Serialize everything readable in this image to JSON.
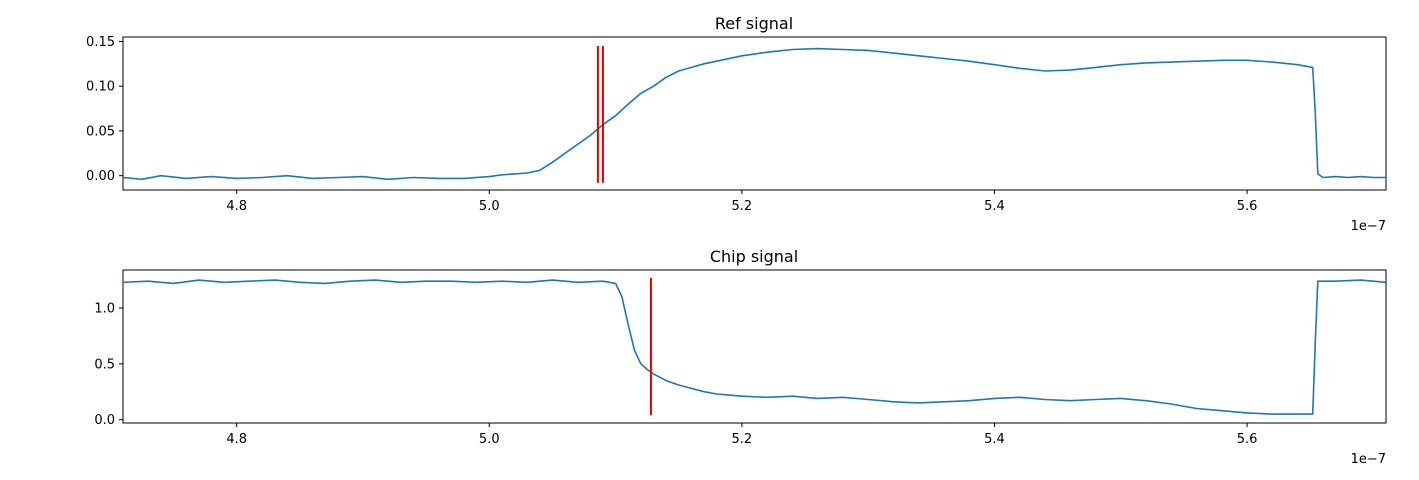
{
  "chart_data": [
    {
      "type": "line",
      "title": "Ref signal",
      "xlabel": "",
      "ylabel": "",
      "x_offset_text": "1e−7",
      "xlim": [
        4.71,
        5.71
      ],
      "ylim": [
        -0.016,
        0.155
      ],
      "xticks": [
        "4.8",
        "5.0",
        "5.2",
        "5.4",
        "5.6"
      ],
      "xtick_values": [
        4.8,
        5.0,
        5.2,
        5.4,
        5.6
      ],
      "yticks": [
        "0.00",
        "0.05",
        "0.10",
        "0.15"
      ],
      "ytick_values": [
        0.0,
        0.05,
        0.1,
        0.15
      ],
      "grid": false,
      "series_color": "#1f77b4",
      "marker_color": "#e00000",
      "vertical_markers": [
        {
          "x": 5.086,
          "y_range": [
            -0.008,
            0.145
          ]
        },
        {
          "x": 5.09,
          "y_range": [
            -0.008,
            0.145
          ]
        }
      ],
      "series": [
        {
          "x": [
            4.71,
            4.725,
            4.74,
            4.76,
            4.78,
            4.8,
            4.82,
            4.84,
            4.86,
            4.88,
            4.9,
            4.92,
            4.94,
            4.96,
            4.98,
            5.0,
            5.01,
            5.02,
            5.03,
            5.04,
            5.05,
            5.06,
            5.07,
            5.08,
            5.09,
            5.1,
            5.11,
            5.12,
            5.13,
            5.14,
            5.15,
            5.16,
            5.17,
            5.18,
            5.2,
            5.22,
            5.24,
            5.26,
            5.28,
            5.3,
            5.32,
            5.34,
            5.36,
            5.38,
            5.4,
            5.42,
            5.44,
            5.46,
            5.48,
            5.5,
            5.52,
            5.54,
            5.56,
            5.58,
            5.6,
            5.62,
            5.64,
            5.652,
            5.654,
            5.656,
            5.66,
            5.67,
            5.68,
            5.69,
            5.7,
            5.71
          ],
          "y": [
            -0.002,
            -0.004,
            0.0,
            -0.003,
            -0.001,
            -0.003,
            -0.002,
            0.0,
            -0.003,
            -0.002,
            -0.001,
            -0.004,
            -0.002,
            -0.003,
            -0.003,
            -0.001,
            0.001,
            0.002,
            0.003,
            0.006,
            0.015,
            0.025,
            0.035,
            0.045,
            0.057,
            0.067,
            0.08,
            0.092,
            0.1,
            0.11,
            0.117,
            0.121,
            0.125,
            0.128,
            0.134,
            0.138,
            0.141,
            0.142,
            0.141,
            0.14,
            0.137,
            0.134,
            0.131,
            0.128,
            0.124,
            0.12,
            0.117,
            0.118,
            0.121,
            0.124,
            0.126,
            0.127,
            0.128,
            0.129,
            0.129,
            0.127,
            0.124,
            0.121,
            0.07,
            0.002,
            -0.002,
            -0.001,
            -0.002,
            -0.001,
            -0.002,
            -0.002
          ]
        }
      ]
    },
    {
      "type": "line",
      "title": "Chip signal",
      "xlabel": "",
      "ylabel": "",
      "x_offset_text": "1e−7",
      "xlim": [
        4.71,
        5.71
      ],
      "ylim": [
        -0.03,
        1.34
      ],
      "xticks": [
        "4.8",
        "5.0",
        "5.2",
        "5.4",
        "5.6"
      ],
      "xtick_values": [
        4.8,
        5.0,
        5.2,
        5.4,
        5.6
      ],
      "yticks": [
        "0.0",
        "0.5",
        "1.0"
      ],
      "ytick_values": [
        0.0,
        0.5,
        1.0
      ],
      "grid": false,
      "series_color": "#1f77b4",
      "marker_color": "#e00000",
      "vertical_markers": [
        {
          "x": 5.128,
          "y_range": [
            0.04,
            1.27
          ]
        }
      ],
      "series": [
        {
          "x": [
            4.71,
            4.73,
            4.75,
            4.77,
            4.79,
            4.81,
            4.83,
            4.85,
            4.87,
            4.89,
            4.91,
            4.93,
            4.95,
            4.97,
            4.99,
            5.01,
            5.03,
            5.05,
            5.07,
            5.09,
            5.1,
            5.105,
            5.11,
            5.115,
            5.12,
            5.125,
            5.13,
            5.14,
            5.15,
            5.16,
            5.17,
            5.18,
            5.19,
            5.2,
            5.22,
            5.24,
            5.26,
            5.28,
            5.3,
            5.32,
            5.34,
            5.36,
            5.38,
            5.4,
            5.42,
            5.44,
            5.46,
            5.48,
            5.5,
            5.52,
            5.54,
            5.56,
            5.58,
            5.6,
            5.62,
            5.64,
            5.652,
            5.654,
            5.656,
            5.67,
            5.69,
            5.71
          ],
          "y": [
            1.23,
            1.24,
            1.22,
            1.25,
            1.23,
            1.24,
            1.25,
            1.23,
            1.22,
            1.24,
            1.25,
            1.23,
            1.24,
            1.24,
            1.23,
            1.24,
            1.23,
            1.25,
            1.23,
            1.24,
            1.22,
            1.1,
            0.85,
            0.62,
            0.5,
            0.45,
            0.41,
            0.35,
            0.31,
            0.28,
            0.25,
            0.23,
            0.22,
            0.21,
            0.2,
            0.21,
            0.19,
            0.2,
            0.18,
            0.16,
            0.15,
            0.16,
            0.17,
            0.19,
            0.2,
            0.18,
            0.17,
            0.18,
            0.19,
            0.17,
            0.14,
            0.1,
            0.08,
            0.06,
            0.05,
            0.05,
            0.05,
            0.7,
            1.24,
            1.24,
            1.25,
            1.23
          ]
        }
      ]
    }
  ]
}
